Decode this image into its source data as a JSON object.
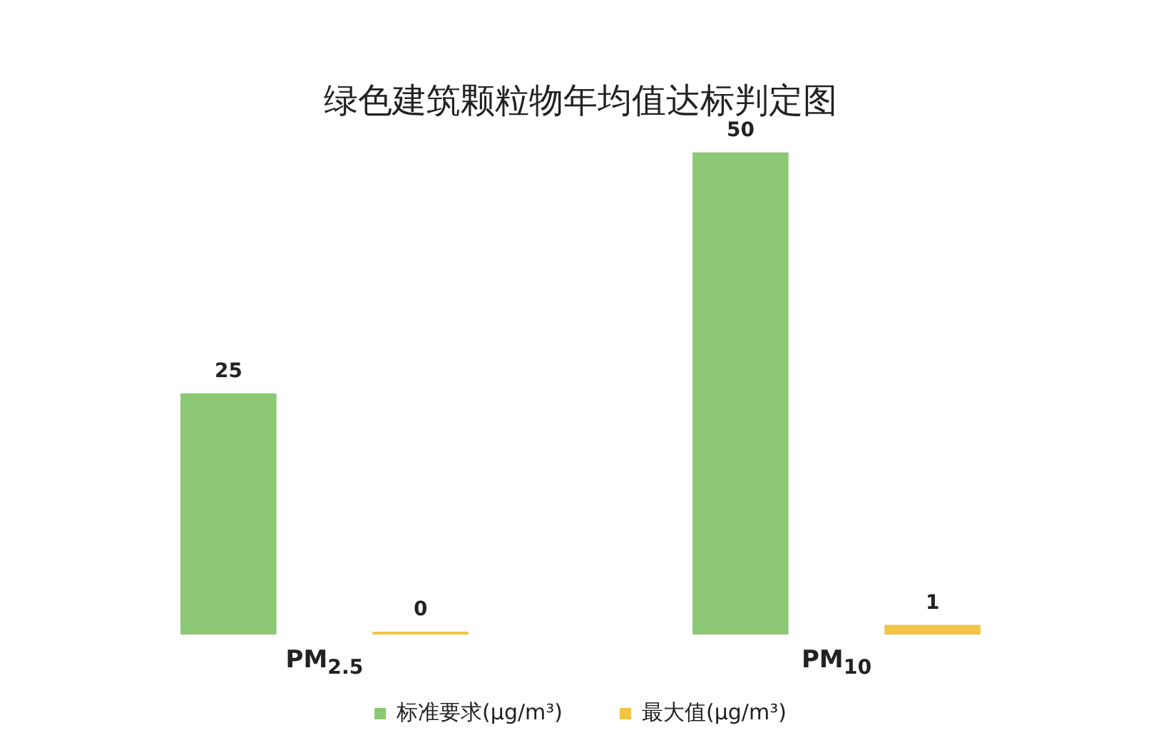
{
  "chart_data": {
    "type": "bar",
    "title": "绿色建筑颗粒物年均值达标判定图",
    "categories": [
      "PM$_{2.5}$",
      "PM$_{10}$"
    ],
    "series": [
      {
        "name": "标准要求(μg/m³)",
        "color": "#8cc873",
        "values": [
          25,
          50
        ]
      },
      {
        "name": "最大值(μg/m³)",
        "color": "#f2c446",
        "values": [
          0,
          1
        ]
      }
    ],
    "data_labels": true,
    "legend": "bottom",
    "grid": false
  }
}
